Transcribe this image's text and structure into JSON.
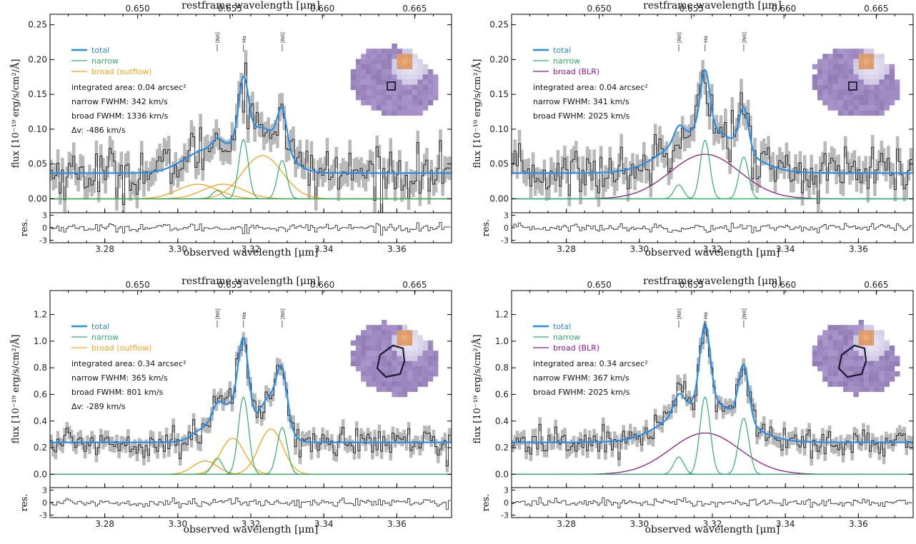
{
  "figure": {
    "top_axis_label": "restframe wavelength [μm]",
    "bottom_axis_label": "observed wavelength [μm]",
    "ylabel_main": "flux [10⁻¹⁹ erg/s/cm²/Å]",
    "ylabel_res": "res.",
    "line_markers": [
      "[NII]",
      "Hα",
      "[NII]"
    ]
  },
  "chart_data": [
    {
      "type": "line",
      "panel": "top-left",
      "xlim": [
        3.265,
        3.375
      ],
      "ylim": [
        -0.02,
        0.265
      ],
      "x_ticks": [
        "3.28",
        "3.30",
        "3.32",
        "3.34",
        "3.36"
      ],
      "top_ticks": [
        "0.650",
        "0.655",
        "0.660",
        "0.665"
      ],
      "y_ticks": [
        "0.00",
        "0.05",
        "0.10",
        "0.15",
        "0.20",
        "0.25"
      ],
      "res_ticks": [
        "3",
        "0",
        "-3"
      ],
      "legend": [
        {
          "label": "total",
          "color": "#2a8ee8"
        },
        {
          "label": "narrow",
          "color": "#2fb06a"
        },
        {
          "label": "broad (outflow)",
          "color": "#f5a318"
        }
      ],
      "annotations": [
        "integrated area: 0.04 arcsec²",
        "narrow FWHM: 342 km/s",
        "broad FWHM: 1336 km/s",
        "Δv: -486 km/s"
      ],
      "continuum": 0.037,
      "noise": 0.018,
      "narrow_components": [
        {
          "center": 3.3108,
          "sigma": 0.0013,
          "amp": 0.012
        },
        {
          "center": 3.318,
          "sigma": 0.0013,
          "amp": 0.085
        },
        {
          "center": 3.3286,
          "sigma": 0.0013,
          "amp": 0.055
        }
      ],
      "broad_components": [
        {
          "center": 3.3055,
          "sigma": 0.0055,
          "amp": 0.021
        },
        {
          "center": 3.3125,
          "sigma": 0.0055,
          "amp": 0.021
        },
        {
          "center": 3.3232,
          "sigma": 0.0055,
          "amp": 0.062
        }
      ],
      "broad_color": "#f5a318",
      "aperture": "square"
    },
    {
      "type": "line",
      "panel": "top-right",
      "xlim": [
        3.265,
        3.375
      ],
      "ylim": [
        -0.02,
        0.265
      ],
      "x_ticks": [
        "3.28",
        "3.30",
        "3.32",
        "3.34",
        "3.36"
      ],
      "top_ticks": [
        "0.650",
        "0.655",
        "0.660",
        "0.665"
      ],
      "y_ticks": [
        "0.00",
        "0.05",
        "0.10",
        "0.15",
        "0.20",
        "0.25"
      ],
      "res_ticks": [
        "3",
        "0",
        "-3"
      ],
      "legend": [
        {
          "label": "total",
          "color": "#2a8ee8"
        },
        {
          "label": "narrow",
          "color": "#2fb06a"
        },
        {
          "label": "broad (BLR)",
          "color": "#8b1a8b"
        }
      ],
      "annotations": [
        "integrated area: 0.04 arcsec²",
        "narrow FWHM: 341 km/s",
        "broad FWHM: 2025 km/s"
      ],
      "continuum": 0.037,
      "noise": 0.018,
      "narrow_components": [
        {
          "center": 3.3108,
          "sigma": 0.0013,
          "amp": 0.02
        },
        {
          "center": 3.318,
          "sigma": 0.0013,
          "amp": 0.084
        },
        {
          "center": 3.3286,
          "sigma": 0.0013,
          "amp": 0.06
        }
      ],
      "broad_components": [
        {
          "center": 3.318,
          "sigma": 0.0095,
          "amp": 0.064
        }
      ],
      "broad_color": "#8b1a8b",
      "aperture": "square"
    },
    {
      "type": "line",
      "panel": "bottom-left",
      "xlim": [
        3.265,
        3.375
      ],
      "ylim": [
        -0.1,
        1.38
      ],
      "x_ticks": [
        "3.28",
        "3.30",
        "3.32",
        "3.34",
        "3.36"
      ],
      "top_ticks": [
        "0.650",
        "0.655",
        "0.660",
        "0.665"
      ],
      "y_ticks": [
        "0.0",
        "0.2",
        "0.4",
        "0.6",
        "0.8",
        "1.0",
        "1.2"
      ],
      "res_ticks": [
        "3",
        "0",
        "-3"
      ],
      "legend": [
        {
          "label": "total",
          "color": "#2a8ee8"
        },
        {
          "label": "narrow",
          "color": "#2fb06a"
        },
        {
          "label": "broad (outflow)",
          "color": "#f5a318"
        }
      ],
      "annotations": [
        "integrated area: 0.34 arcsec²",
        "narrow FWHM: 365 km/s",
        "broad FWHM:  801 km/s",
        "Δv: -289 km/s"
      ],
      "continuum": 0.24,
      "noise": 0.055,
      "narrow_components": [
        {
          "center": 3.3108,
          "sigma": 0.0014,
          "amp": 0.12
        },
        {
          "center": 3.318,
          "sigma": 0.0014,
          "amp": 0.58
        },
        {
          "center": 3.3286,
          "sigma": 0.0014,
          "amp": 0.35
        }
      ],
      "broad_components": [
        {
          "center": 3.3075,
          "sigma": 0.0033,
          "amp": 0.1
        },
        {
          "center": 3.315,
          "sigma": 0.0033,
          "amp": 0.27
        },
        {
          "center": 3.3255,
          "sigma": 0.0033,
          "amp": 0.34
        }
      ],
      "broad_color": "#f5a318",
      "aperture": "polygon"
    },
    {
      "type": "line",
      "panel": "bottom-right",
      "xlim": [
        3.265,
        3.375
      ],
      "ylim": [
        -0.1,
        1.38
      ],
      "x_ticks": [
        "3.28",
        "3.30",
        "3.32",
        "3.34",
        "3.36"
      ],
      "top_ticks": [
        "0.650",
        "0.655",
        "0.660",
        "0.665"
      ],
      "y_ticks": [
        "0.0",
        "0.2",
        "0.4",
        "0.6",
        "0.8",
        "1.0",
        "1.2"
      ],
      "res_ticks": [
        "3",
        "0",
        "-3"
      ],
      "legend": [
        {
          "label": "total",
          "color": "#2a8ee8"
        },
        {
          "label": "narrow",
          "color": "#2fb06a"
        },
        {
          "label": "broad (BLR)",
          "color": "#8b1a8b"
        }
      ],
      "annotations": [
        "integrated area: 0.34 arcsec²",
        "narrow FWHM: 367 km/s",
        "broad FWHM: 2025 km/s"
      ],
      "continuum": 0.24,
      "noise": 0.055,
      "narrow_components": [
        {
          "center": 3.3108,
          "sigma": 0.0014,
          "amp": 0.13
        },
        {
          "center": 3.318,
          "sigma": 0.0014,
          "amp": 0.58
        },
        {
          "center": 3.3286,
          "sigma": 0.0014,
          "amp": 0.42
        }
      ],
      "broad_components": [
        {
          "center": 3.318,
          "sigma": 0.0095,
          "amp": 0.31
        }
      ],
      "broad_color": "#8b1a8b",
      "aperture": "polygon"
    }
  ]
}
